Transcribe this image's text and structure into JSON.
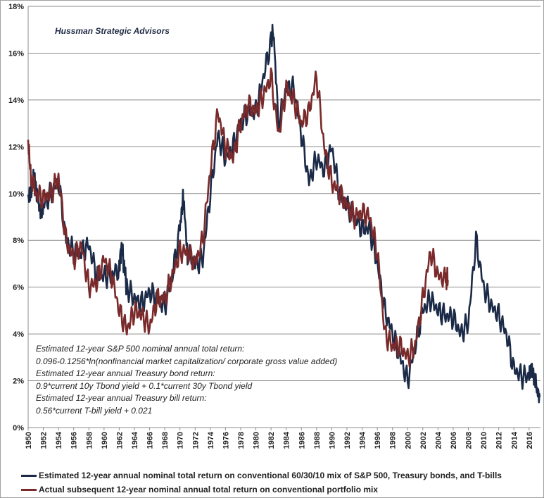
{
  "chart_data": {
    "type": "line",
    "title": "",
    "xlabel": "",
    "ylabel": "",
    "xlim": [
      1950,
      2017.5
    ],
    "ylim": [
      0,
      18
    ],
    "grid": "horizontal",
    "legend_placement": "bottom",
    "y_ticks": [
      "0%",
      "2%",
      "4%",
      "6%",
      "8%",
      "10%",
      "12%",
      "14%",
      "16%",
      "18%"
    ],
    "x_ticks": [
      "1950",
      "1952",
      "1954",
      "1956",
      "1958",
      "1960",
      "1962",
      "1964",
      "1966",
      "1968",
      "1970",
      "1972",
      "1974",
      "1976",
      "1978",
      "1980",
      "1982",
      "1984",
      "1986",
      "1988",
      "1990",
      "1992",
      "1994",
      "1996",
      "1998",
      "2000",
      "2002",
      "2004",
      "2006",
      "2008",
      "2010",
      "2012",
      "2014",
      "2016"
    ],
    "series": [
      {
        "name": "Estimated 12-year annual nominal total return on conventional 60/30/10 mix of S&P 500, Treasury bonds, and T-bills",
        "color": "#1b2a47",
        "x": [
          1950,
          1950.5,
          1951,
          1951.5,
          1952,
          1953,
          1954,
          1955,
          1956,
          1957,
          1958,
          1959,
          1960,
          1961,
          1962,
          1962.3,
          1963,
          1964,
          1965,
          1966,
          1967,
          1968,
          1969,
          1970,
          1970.4,
          1971,
          1972,
          1973,
          1974,
          1975,
          1976,
          1977,
          1978,
          1979,
          1980,
          1981,
          1982,
          1982.3,
          1983,
          1984,
          1985,
          1986,
          1987,
          1988,
          1989,
          1990,
          1991,
          1992,
          1993,
          1994,
          1995,
          1996,
          1997,
          1998,
          1999,
          2000,
          2001,
          2002,
          2003,
          2004,
          2005,
          2006,
          2007,
          2008,
          2009,
          2010,
          2011,
          2012,
          2013,
          2014,
          2015,
          2016,
          2016.5,
          2017,
          2017.4
        ],
        "y": [
          9.5,
          10.5,
          10.5,
          9.2,
          9.5,
          10,
          10.5,
          8,
          7.5,
          7.5,
          7.8,
          6.5,
          6.5,
          6.5,
          6.8,
          7.8,
          6,
          5.5,
          5.3,
          5.8,
          5.5,
          5.2,
          6.5,
          8.5,
          9.8,
          7.5,
          7,
          7.2,
          10,
          12.5,
          11.5,
          12,
          13,
          13.5,
          13.5,
          15,
          16.5,
          17,
          13,
          14.5,
          14.5,
          12.5,
          10.5,
          11.5,
          11,
          12,
          10,
          9.5,
          9,
          8.5,
          8.5,
          7,
          5,
          4,
          3,
          2,
          3.5,
          5,
          5.5,
          5,
          4.8,
          4.7,
          4,
          4.5,
          8,
          6,
          5.2,
          4.8,
          4,
          2.5,
          2.2,
          2.2,
          2.5,
          1.6,
          1.3
        ]
      },
      {
        "name": "Actual subsequent 12-year nominal annual total return on conventional portfolio mix",
        "color": "#7a2a2a",
        "x": [
          1950,
          1950.5,
          1951,
          1952,
          1953,
          1954,
          1955,
          1956,
          1957,
          1958,
          1959,
          1960,
          1961,
          1962,
          1963,
          1964,
          1965,
          1966,
          1967,
          1968,
          1969,
          1970,
          1971,
          1972,
          1973,
          1974,
          1975,
          1976,
          1977,
          1978,
          1979,
          1980,
          1981,
          1982,
          1983,
          1984,
          1985,
          1986,
          1987,
          1988,
          1989,
          1990,
          1991,
          1992,
          1993,
          1994,
          1995,
          1996,
          1997,
          1998,
          1999,
          2000,
          2001,
          2002,
          2003,
          2004,
          2005,
          2005.3
        ],
        "y": [
          12,
          10.5,
          10,
          9.8,
          10,
          10.7,
          8,
          7.2,
          7.8,
          6,
          6.2,
          7.2,
          6.5,
          5,
          4.2,
          5,
          4.8,
          4.3,
          5.5,
          5.5,
          6.5,
          7.5,
          7.5,
          7,
          8,
          11,
          13.5,
          12,
          11.5,
          13,
          13.8,
          13.5,
          14.2,
          15,
          12.5,
          14.5,
          14,
          13,
          13.5,
          15,
          12,
          10.5,
          10,
          9.5,
          9,
          9.2,
          9,
          7.5,
          4,
          3.5,
          3.5,
          3,
          3.5,
          5.5,
          7.5,
          6.5,
          6.3,
          6.3
        ]
      }
    ]
  },
  "watermark": "Hussman Strategic Advisors",
  "annotation": [
    "Estimated 12-year S&P 500  nominal annual total return:",
    "0.096-0.1256*ln(nonfinancial market capitalization/ corporate gross value added)",
    "Estimated 12-year annual Treasury bond return:",
    "0.9*current 10y Tbond yield + 0.1*current  30y Tbond yield",
    "Estimated 12-year annual Treasury bill return:",
    "0.56*current  T-bill yield  + 0.021"
  ]
}
